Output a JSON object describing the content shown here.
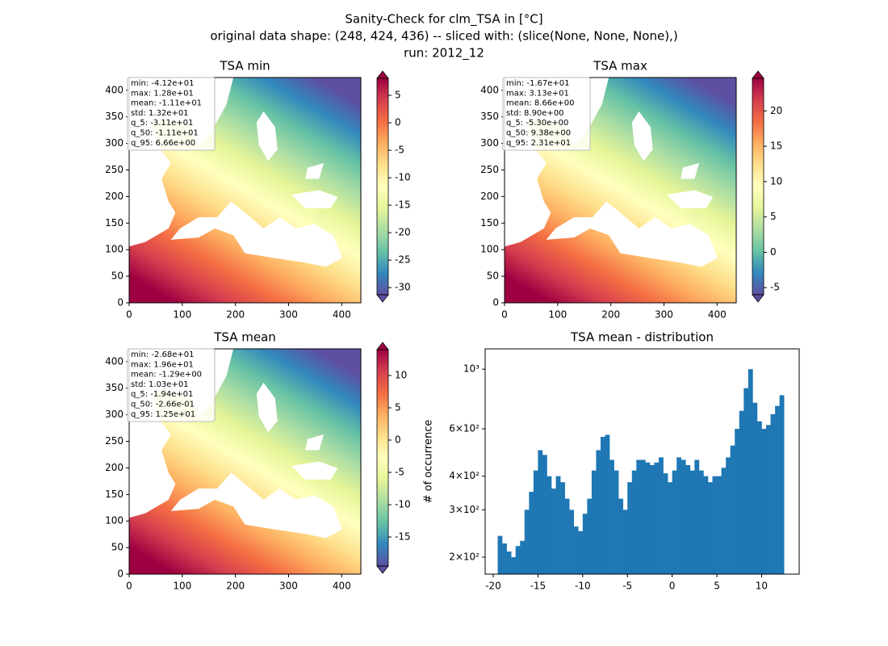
{
  "suptitle": [
    "Sanity-Check for clm_TSA in [°C]",
    "original data shape: (248, 424, 436) -- sliced with: (slice(None, None, None),)",
    "run: 2012_12"
  ],
  "chart_data": [
    {
      "type": "image",
      "title": "TSA min",
      "stats": [
        "min: -4.12e+01",
        "max: 1.28e+01",
        "mean: -1.11e+01",
        "std: 1.32e+01",
        "q_5: -3.11e+01",
        "q_50: -1.11e+01",
        "q_95: 6.66e+00"
      ],
      "xlim": [
        0,
        436
      ],
      "ylim": [
        0,
        424
      ],
      "xticks": [
        0,
        100,
        200,
        300,
        400
      ],
      "yticks": [
        0,
        50,
        100,
        150,
        200,
        250,
        300,
        350,
        400
      ],
      "colormap": "Spectral_r",
      "clim": [
        -31.3,
        8.1
      ],
      "cticks": [
        -30,
        -25,
        -20,
        -15,
        -10,
        -5,
        0,
        5
      ]
    },
    {
      "type": "image",
      "title": "TSA max",
      "stats": [
        "min: -1.67e+01",
        "max: 3.13e+01",
        "mean: 8.66e+00",
        "std: 8.90e+00",
        "q_5: -5.30e+00",
        "q_50: 9.38e+00",
        "q_95: 2.31e+01"
      ],
      "xlim": [
        0,
        436
      ],
      "ylim": [
        0,
        424
      ],
      "xticks": [
        0,
        100,
        200,
        300,
        400
      ],
      "yticks": [
        0,
        50,
        100,
        150,
        200,
        250,
        300,
        350,
        400
      ],
      "colormap": "Spectral_r",
      "clim": [
        -6.0,
        24.6
      ],
      "cticks": [
        -5,
        0,
        5,
        10,
        15,
        20
      ]
    },
    {
      "type": "image",
      "title": "TSA mean",
      "stats": [
        "min: -2.68e+01",
        "max: 1.96e+01",
        "mean: -1.29e+00",
        "std: 1.03e+01",
        "q_5: -1.94e+01",
        "q_50: -2.66e-01",
        "q_95: 1.25e+01"
      ],
      "xlim": [
        0,
        436
      ],
      "ylim": [
        0,
        424
      ],
      "xticks": [
        0,
        100,
        200,
        300,
        400
      ],
      "yticks": [
        0,
        50,
        100,
        150,
        200,
        250,
        300,
        350,
        400
      ],
      "colormap": "Spectral_r",
      "clim": [
        -19.5,
        14.0
      ],
      "cticks": [
        -15,
        -10,
        -5,
        0,
        5,
        10
      ]
    },
    {
      "type": "histogram",
      "title": "TSA mean - distribution",
      "ylabel": "# of occurrence",
      "color": "#1f77b4",
      "log_y": true,
      "bins": [
        -19.5,
        -19,
        -18.5,
        -18,
        -17.5,
        -17,
        -16.5,
        -16,
        -15.5,
        -15,
        -14.5,
        -14,
        -13.5,
        -13,
        -12.5,
        -12,
        -11.5,
        -11,
        -10.5,
        -10,
        -9.5,
        -9,
        -8.5,
        -8,
        -7.5,
        -7,
        -6.5,
        -6,
        -5.5,
        -5,
        -4.5,
        -4,
        -3.5,
        -3,
        -2.5,
        -2,
        -1.5,
        -1,
        -0.5,
        0,
        0.5,
        1,
        1.5,
        2,
        2.5,
        3,
        3.5,
        4,
        4.5,
        5,
        5.5,
        6,
        6.5,
        7,
        7.5,
        8,
        8.5,
        9,
        9.5,
        10,
        10.5,
        11,
        11.5,
        12,
        12.5
      ],
      "values": [
        240,
        225,
        210,
        200,
        220,
        230,
        300,
        350,
        420,
        500,
        480,
        400,
        360,
        400,
        380,
        330,
        300,
        260,
        250,
        290,
        330,
        420,
        500,
        560,
        570,
        460,
        420,
        330,
        300,
        380,
        420,
        460,
        460,
        450,
        440,
        450,
        470,
        410,
        380,
        420,
        470,
        460,
        440,
        420,
        460,
        420,
        400,
        380,
        400,
        400,
        430,
        470,
        520,
        600,
        700,
        850,
        1000,
        750,
        640,
        600,
        620,
        680,
        730,
        800
      ],
      "xlim": [
        -20.9,
        14.2
      ],
      "ylim": [
        173,
        1190
      ],
      "xticks": [
        -20,
        -15,
        -10,
        -5,
        0,
        5,
        10
      ],
      "yticks": [
        {
          "value": 200,
          "label": "2×10²"
        },
        {
          "value": 300,
          "label": "3×10²"
        },
        {
          "value": 400,
          "label": "4×10²"
        },
        {
          "value": 600,
          "label": "6×10²"
        },
        {
          "value": 1000,
          "label": "10³"
        }
      ]
    }
  ]
}
